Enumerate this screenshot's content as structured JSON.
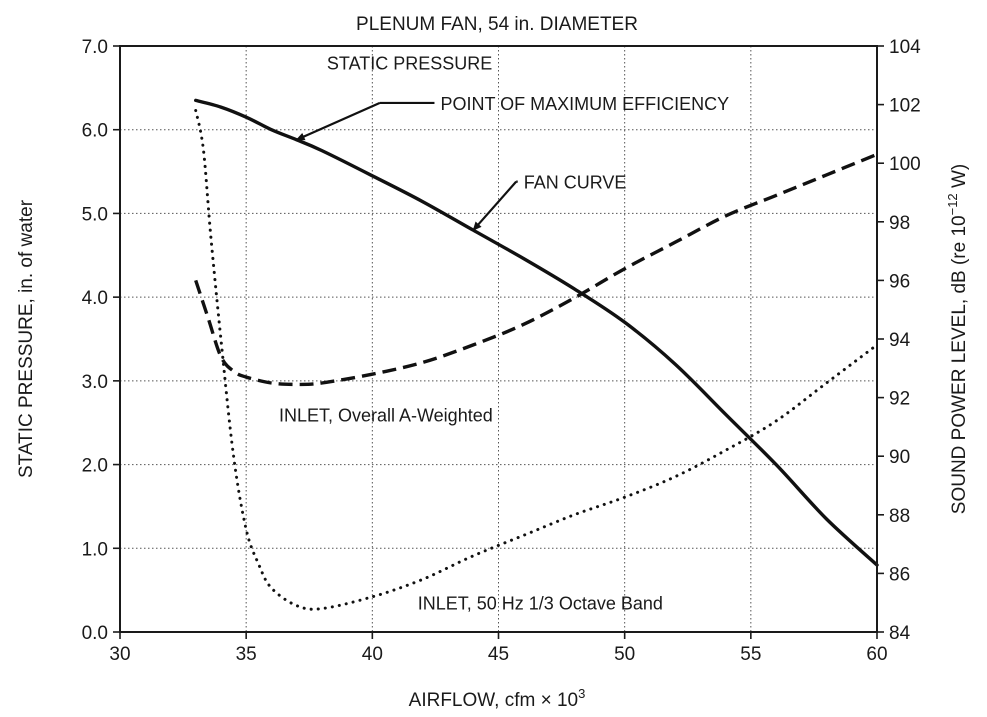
{
  "chart_data": {
    "type": "line",
    "title": "PLENUM FAN, 54 in. DIAMETER",
    "xlabel": "AIRFLOW, cfm × 10",
    "xlabel_superscript": "3",
    "ylabel_left": "STATIC PRESSURE, in. of water",
    "ylabel_right": "SOUND POWER LEVEL, dB (re 10",
    "ylabel_right_superscript": "−12",
    "ylabel_right_suffix": " W)",
    "xlim": [
      30,
      60
    ],
    "ylim_left": [
      0,
      7
    ],
    "ylim_right": [
      84,
      104
    ],
    "x_ticks": [
      "30",
      "35",
      "40",
      "45",
      "50",
      "55",
      "60"
    ],
    "y_left_ticks": [
      "0.0",
      "1.0",
      "2.0",
      "3.0",
      "4.0",
      "5.0",
      "6.0",
      "7.0"
    ],
    "y_right_ticks": [
      "84",
      "86",
      "88",
      "90",
      "92",
      "94",
      "96",
      "98",
      "100",
      "102",
      "104"
    ],
    "grid": true,
    "series": [
      {
        "name": "STATIC PRESSURE",
        "axis": "left",
        "style": "solid",
        "x": [
          33,
          34,
          35,
          36,
          37,
          38,
          40,
          42,
          44,
          46,
          48,
          50,
          52,
          54,
          56,
          58,
          60
        ],
        "y": [
          6.35,
          6.27,
          6.15,
          6.0,
          5.88,
          5.75,
          5.45,
          5.14,
          4.8,
          4.46,
          4.1,
          3.7,
          3.2,
          2.6,
          2.0,
          1.35,
          0.8
        ]
      },
      {
        "name": "INLET, Overall A-Weighted",
        "axis": "right",
        "style": "dashed",
        "x": [
          33,
          33.5,
          34,
          34.5,
          35,
          36,
          37,
          38,
          40,
          42,
          44,
          46,
          48,
          50,
          52,
          54,
          56,
          58,
          60
        ],
        "y": [
          96,
          94.7,
          93.4,
          92.9,
          92.7,
          92.5,
          92.45,
          92.5,
          92.8,
          93.2,
          93.8,
          94.5,
          95.4,
          96.4,
          97.3,
          98.2,
          98.9,
          99.6,
          100.3
        ]
      },
      {
        "name": "INLET, 50 Hz 1/3 Octave Band",
        "axis": "right",
        "style": "dotted",
        "x": [
          33,
          33.3,
          33.6,
          34,
          34.5,
          35,
          35.5,
          36,
          37,
          38,
          40,
          42,
          44,
          46,
          48,
          50,
          52,
          54,
          56,
          58,
          60
        ],
        "y": [
          101.8,
          100.5,
          97.5,
          94,
          90,
          87.5,
          86.3,
          85.5,
          84.9,
          84.8,
          85.2,
          85.8,
          86.6,
          87.3,
          88,
          88.6,
          89.3,
          90.2,
          91.2,
          92.5,
          93.8
        ]
      }
    ],
    "annotations": [
      {
        "text": "STATIC PRESSURE",
        "x": 38.2,
        "y": 6.8
      },
      {
        "text": "POINT OF MAXIMUM EFFICIENCY",
        "x": 42.7,
        "y": 6.32,
        "arrow_to": [
          37,
          5.88
        ],
        "arrow_via": [
          40.3,
          6.32
        ]
      },
      {
        "text": "FAN CURVE",
        "x": 46.0,
        "y": 5.38,
        "arrow_to": [
          44.0,
          4.8
        ],
        "arrow_via": [
          45.7,
          5.38
        ]
      },
      {
        "text": "INLET, Overall A-Weighted",
        "x": 36.3,
        "y": 2.6
      },
      {
        "text": "INLET, 50 Hz 1/3 Octave Band",
        "x": 41.8,
        "y": 0.35
      }
    ]
  }
}
